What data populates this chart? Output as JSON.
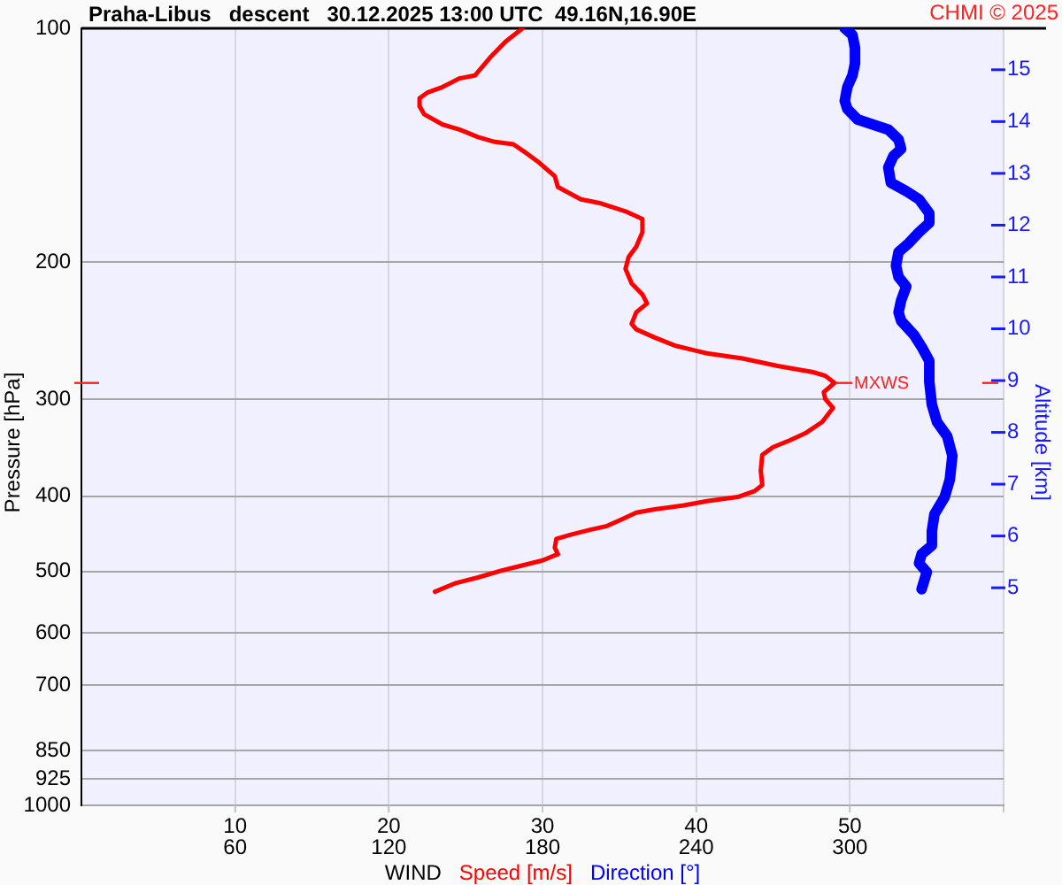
{
  "chart_data": {
    "type": "line",
    "title": "Praha-Libus   descent   30.12.2025 13:00 UTC  49.16N,16.90E",
    "xlabel": "WIND",
    "ylabel": "Pressure [hPa]",
    "y2label": "Altitude [km]",
    "annotations": [
      "CHMI © 2025",
      {
        "text": "MXWS",
        "x": 49.0,
        "y": 286
      }
    ],
    "series": [
      {
        "name": "Speed [m/s]",
        "color": "#ff0000",
        "x": [
          28.7,
          27.6,
          26.6,
          25.6,
          24.6,
          23.5,
          22.5,
          22.0,
          22.0,
          22.3,
          23.5,
          24.6,
          25.8,
          26.9,
          28.1,
          29.0,
          29.8,
          30.8,
          31.0,
          31.5,
          32.5,
          33.8,
          35.4,
          36.5,
          36.5,
          36.1,
          35.6,
          35.4,
          35.8,
          36.5,
          36.8,
          36.1,
          35.8,
          36.1,
          37.3,
          38.6,
          40.0,
          40.7,
          43.0,
          45.3,
          47.6,
          48.4,
          49.0,
          48.3,
          48.4,
          48.9,
          48.2,
          47.1,
          46.1,
          45.0,
          44.3,
          44.2,
          44.3,
          43.8,
          42.7,
          40.7,
          39.2,
          37.3,
          36.1,
          35.2,
          34.2,
          33.1,
          31.9,
          30.9,
          30.8,
          31.0,
          30.0,
          28.9,
          27.3,
          25.8,
          24.3,
          23.0
        ],
        "values": [
          100,
          104,
          109,
          115,
          116,
          119,
          121,
          123,
          126,
          129,
          133,
          135,
          138,
          140,
          141,
          145,
          149,
          155,
          160,
          162,
          166,
          168,
          172,
          176,
          183,
          191,
          197,
          204,
          213,
          220,
          226,
          232,
          240,
          244,
          250,
          256,
          260,
          262,
          266,
          272,
          277,
          280,
          286,
          294,
          300,
          308,
          321,
          332,
          339,
          346,
          354,
          371,
          387,
          394,
          401,
          406,
          411,
          416,
          420,
          428,
          437,
          442,
          448,
          454,
          466,
          475,
          484,
          490,
          499,
          509,
          518,
          531
        ]
      },
      {
        "name": "Direction [°]",
        "color": "#0000ff",
        "axis": "x2",
        "x": [
          298,
          301,
          302,
          302,
          301,
          299,
          298,
          299,
          303,
          309,
          315,
          319,
          320,
          317,
          315,
          316,
          322,
          327,
          331,
          331,
          327,
          323,
          319,
          318,
          319,
          322,
          320,
          319,
          320,
          325,
          328,
          331,
          331,
          332,
          334,
          338,
          340,
          339,
          337,
          333,
          332,
          332,
          328,
          327,
          330,
          329,
          328
        ],
        "values": [
          100,
          102,
          106,
          111,
          115,
          119,
          124,
          127,
          131,
          133,
          135,
          139,
          143,
          146,
          151,
          158,
          162,
          166,
          173,
          178,
          183,
          189,
          194,
          202,
          209,
          215,
          224,
          232,
          238,
          248,
          257,
          268,
          285,
          305,
          321,
          335,
          355,
          381,
          401,
          422,
          444,
          463,
          475,
          488,
          501,
          514,
          527
        ]
      }
    ],
    "xlim": [
      0,
      60
    ],
    "xticks": [
      10,
      20,
      30,
      40,
      50,
      {
        "value": 60,
        "label": null
      }
    ],
    "x2lim": [
      0,
      360
    ],
    "x2ticks": [
      60,
      120,
      180,
      240,
      300
    ],
    "ylim": [
      1000,
      100
    ],
    "yticks": [
      100,
      200,
      300,
      400,
      500,
      600,
      700,
      850,
      925,
      1000
    ],
    "log": "y",
    "y2lim": [
      0.8,
      15.8
    ],
    "y2ticks": [
      5,
      6,
      7,
      8,
      9,
      10,
      11,
      12,
      13,
      14,
      15
    ],
    "grid": true,
    "legend": "bottom",
    "marker": "none",
    "line_style": "solid"
  }
}
